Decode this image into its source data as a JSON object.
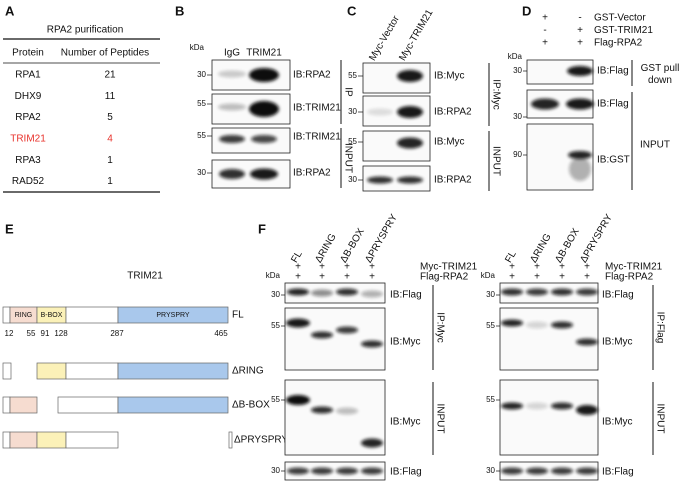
{
  "panel_labels": [
    "A",
    "B",
    "C",
    "D",
    "E",
    "F"
  ],
  "table": {
    "title": "RPA2 purification",
    "header": [
      "Protein",
      "Number of Peptides"
    ],
    "rows": [
      [
        "RPA1",
        21
      ],
      [
        "DHX9",
        11
      ],
      [
        "RPA2",
        5
      ],
      [
        "TRIM21",
        4
      ],
      [
        "RPA3",
        1
      ],
      [
        "RAD52",
        1
      ]
    ],
    "highlight_row": 3,
    "highlight_color": "#e8322b"
  },
  "panel_b": {
    "kda": "kDa",
    "lanes": [
      "IgG",
      "TRIM21"
    ],
    "blots": [
      {
        "marker": 30,
        "label": "IB:RPA2"
      },
      {
        "marker": 55,
        "label": "IB:TRIM21"
      },
      {
        "marker": 55,
        "label": "IB:TRIM21"
      },
      {
        "marker": 30,
        "label": "IB:RPA2"
      }
    ],
    "groups": [
      "IP",
      "INPUT"
    ]
  },
  "panel_c": {
    "lanes": [
      "Myc-Vector",
      "Myc-TRIM21"
    ],
    "blots": [
      {
        "marker": 55,
        "label": "IB:Myc"
      },
      {
        "marker": 30,
        "label": "IB:RPA2"
      },
      {
        "marker": 55,
        "label": "IB:Myc"
      },
      {
        "marker": 30,
        "label": "IB:RPA2"
      }
    ],
    "groups": [
      "IP:Myc",
      "INPUT"
    ]
  },
  "panel_d": {
    "kda": "kDa",
    "conditions": [
      {
        "name": "GST-Vector",
        "signs": [
          "+",
          "-"
        ]
      },
      {
        "name": "GST-TRIM21",
        "signs": [
          "-",
          "+"
        ]
      },
      {
        "name": "Flag-RPA2",
        "signs": [
          "+",
          "+"
        ]
      }
    ],
    "blots": [
      {
        "marker": 30,
        "label": "IB:Flag"
      },
      {
        "marker": 30,
        "label": "IB:Flag"
      },
      {
        "marker": 90,
        "label": "IB:GST"
      }
    ],
    "groups": [
      "GST pull down",
      "INPUT"
    ]
  },
  "panel_e": {
    "title": "TRIM21",
    "domains": [
      "RING",
      "B-BOX",
      "PRYSPRY"
    ],
    "positions": [
      12,
      55,
      91,
      128,
      287,
      465
    ],
    "constructs": [
      "FL",
      "ΔRING",
      "ΔB-BOX",
      "ΔPRYSPRY"
    ]
  },
  "panel_f": {
    "lanes": [
      "FL",
      "ΔRING",
      "ΔB-BOX",
      "ΔPRYSPRY"
    ],
    "conditions": [
      {
        "name": "Myc-TRIM21",
        "signs": [
          "+",
          "+",
          "+",
          "+"
        ]
      },
      {
        "name": "Flag-RPA2",
        "signs": [
          "+",
          "+",
          "+",
          "+"
        ]
      }
    ],
    "left": {
      "kda": "kDa",
      "blots": [
        {
          "marker": 30,
          "label": "IB:Flag"
        },
        {
          "marker": 55,
          "label": "IB:Myc"
        },
        {
          "marker": 55,
          "label": "IB:Myc"
        },
        {
          "marker": 30,
          "label": "IB:Flag"
        }
      ],
      "groups": [
        "IP:Myc",
        "INPUT"
      ]
    },
    "right": {
      "kda": "kDa",
      "blots": [
        {
          "marker": 30,
          "label": "IB:Flag"
        },
        {
          "marker": 55,
          "label": "IB:Myc"
        },
        {
          "marker": 55,
          "label": "IB:Myc"
        },
        {
          "marker": 30,
          "label": "IB:Flag"
        }
      ],
      "groups": [
        "IP:Flag",
        "INPUT"
      ]
    }
  }
}
